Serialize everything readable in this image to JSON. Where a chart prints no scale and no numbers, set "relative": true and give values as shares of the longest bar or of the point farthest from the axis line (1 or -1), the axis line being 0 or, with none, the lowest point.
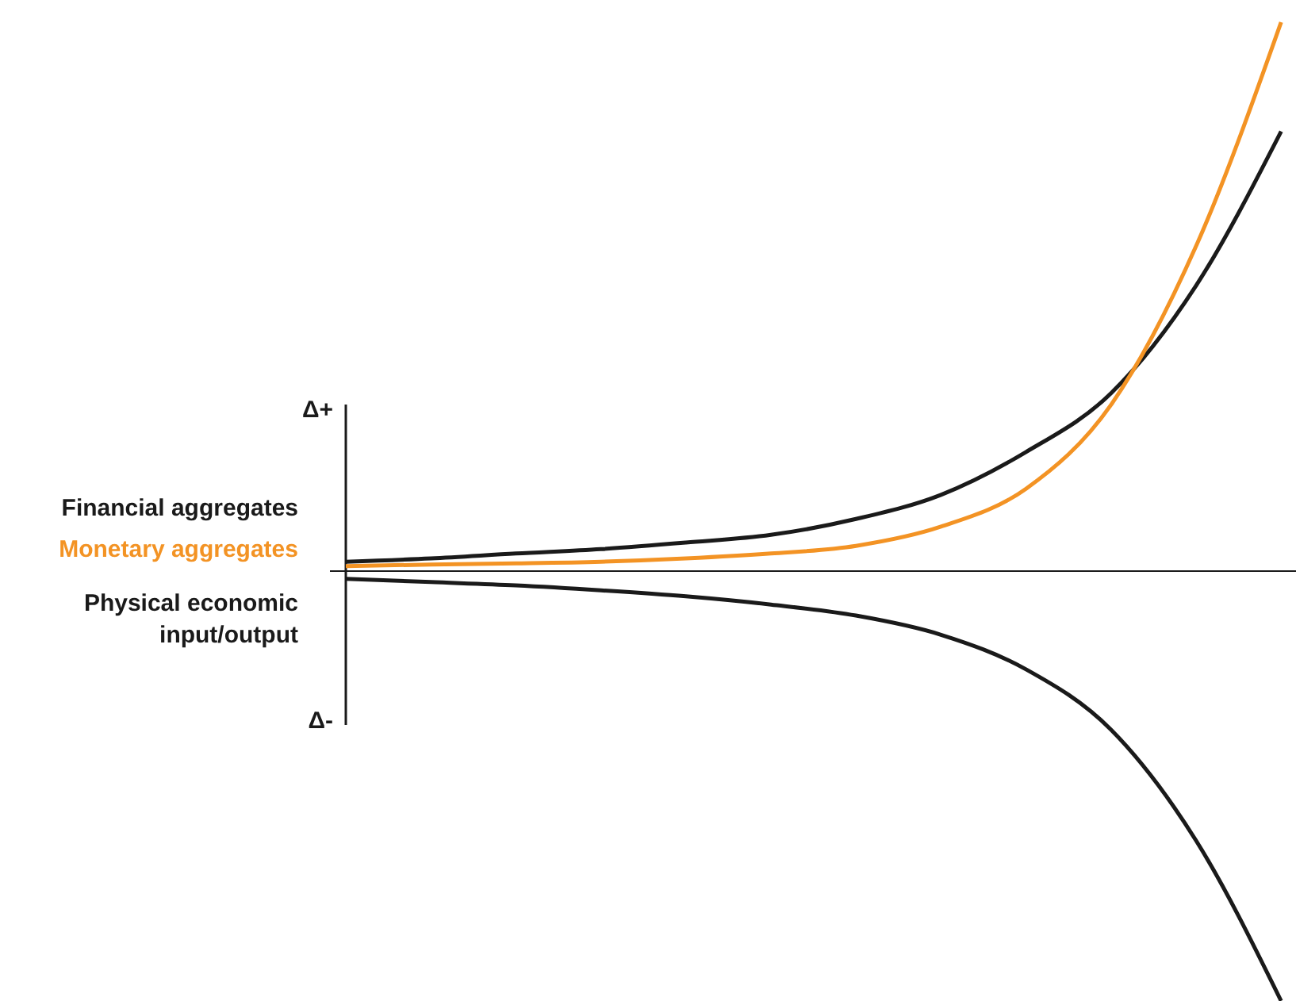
{
  "chart_data": {
    "type": "line",
    "relative": true,
    "categories": [
      null,
      null,
      null,
      null,
      null,
      null,
      null,
      null,
      null,
      null,
      null,
      null
    ],
    "series": [
      {
        "name": "Financial aggregates",
        "color": "#1a1a1a",
        "values": [
          0.017,
          0.023,
          0.032,
          0.04,
          0.052,
          0.066,
          0.095,
          0.139,
          0.217,
          0.324,
          0.52,
          0.801
        ]
      },
      {
        "name": "Monetary aggregates",
        "color": "#f39324",
        "values": [
          0.009,
          0.012,
          0.014,
          0.017,
          0.023,
          0.032,
          0.046,
          0.081,
          0.15,
          0.303,
          0.592,
          1
        ]
      },
      {
        "name": "Physical economic input/output",
        "color": "#1a1a1a",
        "values": [
          -0.014,
          -0.02,
          -0.026,
          -0.035,
          -0.046,
          -0.061,
          -0.081,
          -0.116,
          -0.179,
          -0.289,
          -0.491,
          -0.783
        ]
      }
    ],
    "annotations": [
      "Δ+",
      "Δ-"
    ],
    "marker": "none",
    "line_style": "solid"
  }
}
